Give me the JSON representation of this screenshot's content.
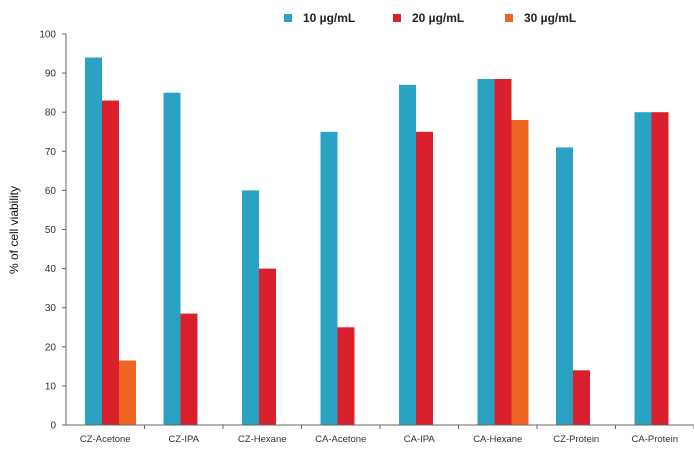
{
  "chart_data": {
    "type": "bar",
    "title": "",
    "xlabel": "",
    "ylabel": "% of cell viability",
    "ylim": [
      0,
      100
    ],
    "yticks": [
      0,
      10,
      20,
      30,
      40,
      50,
      60,
      70,
      80,
      90,
      100
    ],
    "grid": false,
    "legend_position": "top",
    "categories": [
      "CZ-Acetone",
      "CZ-IPA",
      "CZ-Hexane",
      "CA-Acetone",
      "CA-IPA",
      "CA-Hexane",
      "CZ-Protein",
      "CA-Protein"
    ],
    "series": [
      {
        "name": "10 µg/mL",
        "color": "#2aa3c3",
        "values": [
          94,
          85,
          60,
          75,
          87,
          88.5,
          71,
          80
        ]
      },
      {
        "name": "20 µg/mL",
        "color": "#d9202c",
        "values": [
          83,
          28.5,
          40,
          25,
          75,
          88.5,
          14,
          80
        ]
      },
      {
        "name": "30 µg/mL",
        "color": "#ee6522",
        "values": [
          16.5,
          null,
          null,
          null,
          null,
          78,
          null,
          null
        ]
      }
    ]
  }
}
